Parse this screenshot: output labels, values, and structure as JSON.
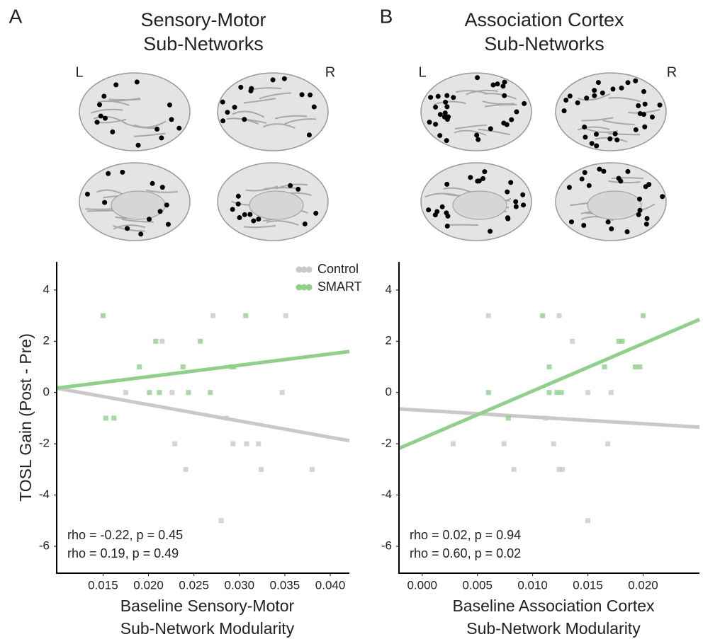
{
  "chart_data": [
    {
      "type": "scatter",
      "panel_label": "A",
      "title": [
        "Sensory-Motor",
        "Sub-Networks"
      ],
      "hemisphere_labels": [
        "L",
        "R"
      ],
      "x_label": [
        "Baseline Sensory-Motor",
        "Sub-Network Modularity"
      ],
      "y_label": "TOSL Gain (Post - Pre)",
      "xlim": [
        0.0099,
        0.0421
      ],
      "ylim": [
        -7.05,
        5.1
      ],
      "xticks": [
        0.015,
        {
          "value": 0.02,
          "label": "0.020"
        },
        0.025,
        {
          "value": 0.03,
          "label": "0.030"
        },
        0.035,
        {
          "value": 0.04,
          "label": "0.040"
        }
      ],
      "yticks": [
        4,
        2,
        0,
        -2,
        -4,
        -6
      ],
      "legend": "upper right",
      "series": [
        {
          "name": "Control",
          "color": "#c9c9c9",
          "x": [
            0.0271,
            0.0351,
            0.0175,
            0.0215,
            0.0226,
            0.0347,
            0.0286,
            0.0229,
            0.0293,
            0.0308,
            0.0321,
            0.0241,
            0.0324,
            0.038,
            0.028
          ],
          "values": [
            3,
            3,
            0,
            2,
            0,
            0,
            -1,
            -2,
            -2,
            -2,
            -2,
            -3,
            -3,
            -3,
            -5
          ],
          "fit_x": [
            0.0099,
            0.0421
          ],
          "fit_y": [
            0.17,
            -1.88
          ]
        },
        {
          "name": "SMART",
          "color": "#8fd08a",
          "x": [
            0.015,
            0.0307,
            0.0208,
            0.0257,
            0.019,
            0.0238,
            0.0291,
            0.0294,
            0.0201,
            0.0212,
            0.0244,
            0.0268,
            0.0153,
            0.0162
          ],
          "values": [
            3,
            3,
            2,
            2,
            1,
            1,
            1,
            1,
            0,
            0,
            0,
            0,
            -1,
            -1
          ],
          "fit_x": [
            0.0099,
            0.0421
          ],
          "fit_y": [
            0.17,
            1.6
          ]
        }
      ],
      "annotations": [
        {
          "text": "rho = -0.22, p = 0.45",
          "color": "#808080"
        },
        {
          "text": "rho = 0.19, p = 0.49",
          "color": "#2e9a4a"
        }
      ]
    },
    {
      "type": "scatter",
      "panel_label": "B",
      "title": [
        "Association Cortex",
        "Sub-Networks"
      ],
      "hemisphere_labels": [
        "L",
        "R"
      ],
      "x_label": [
        "Baseline Association Cortex",
        "Sub-Network Modularity"
      ],
      "xlim": [
        -0.0021,
        0.0251
      ],
      "ylim": [
        -7.05,
        5.1
      ],
      "xticks": [
        {
          "value": 0,
          "label": "0.000"
        },
        0.005,
        {
          "value": 0.01,
          "label": "0.010"
        },
        0.015,
        {
          "value": 0.02,
          "label": "0.020"
        }
      ],
      "yticks": [
        4,
        2,
        0,
        -2,
        -4,
        -6
      ],
      "series": [
        {
          "color": "#c9c9c9",
          "x": [
            0.006,
            0.0124,
            0.0136,
            0.0028,
            0.0074,
            0.0119,
            0.0083,
            0.0124,
            0.0127,
            0.015,
            0.0171,
            0.0168,
            0.015,
            0.0112
          ],
          "values": [
            3,
            3,
            2,
            -2,
            -2,
            -2,
            -3,
            -3,
            -3,
            0,
            0,
            -2,
            -5,
            -1
          ],
          "fit_x": [
            -0.0021,
            0.0251
          ],
          "fit_y": [
            -0.64,
            -1.35
          ]
        },
        {
          "color": "#8fd08a",
          "x": [
            0.0109,
            0.02,
            0.0178,
            0.0181,
            0.0115,
            0.0165,
            0.0193,
            0.0197,
            0.006,
            0.0115,
            0.0122,
            0.0126,
            0.0078
          ],
          "values": [
            3,
            3,
            2,
            2,
            1,
            1,
            1,
            1,
            0,
            0,
            0,
            0,
            -1
          ],
          "fit_x": [
            -0.0021,
            0.0251
          ],
          "fit_y": [
            -2.18,
            2.85
          ]
        }
      ],
      "annotations": [
        {
          "text": "rho = 0.02, p = 0.94",
          "color": "#808080"
        },
        {
          "text": "rho = 0.60, p = 0.02",
          "color": "#2e9a4a"
        }
      ]
    }
  ]
}
